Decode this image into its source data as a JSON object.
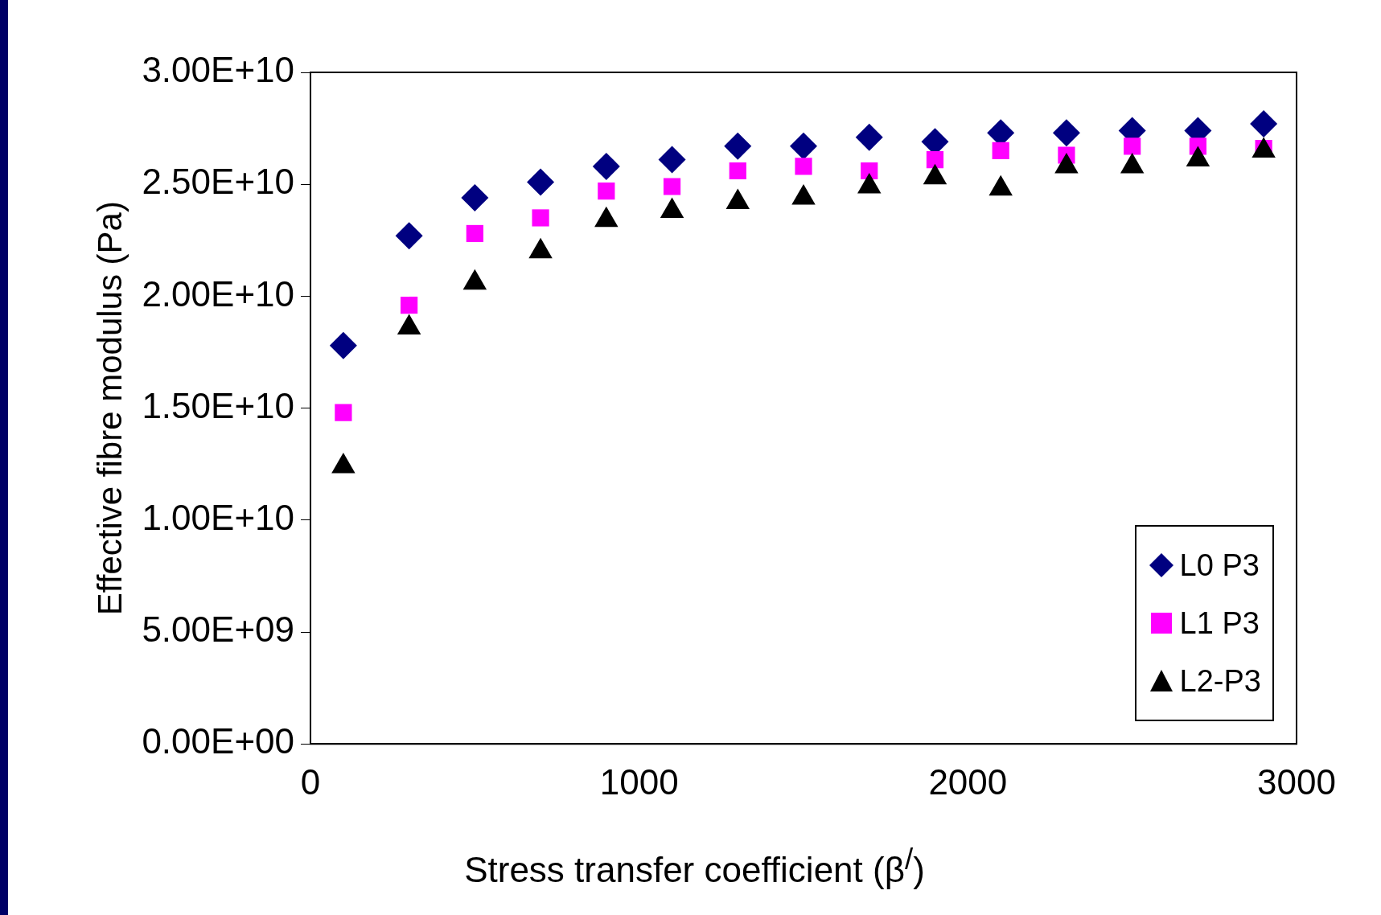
{
  "chart_data": {
    "type": "scatter",
    "xlabel": "Stress transfer coefficient (β$^{/}$)",
    "ylabel": "Effective fibre modulus (Pa)",
    "x": [
      100,
      300,
      500,
      700,
      900,
      1100,
      1300,
      1500,
      1700,
      1900,
      2100,
      2300,
      2500,
      2700,
      2900
    ],
    "xlim": [
      0,
      3000
    ],
    "xticks": [
      0,
      1000,
      2000,
      3000
    ],
    "ylim": [
      0,
      30000000000
    ],
    "yticks": [
      {
        "value": 0,
        "label": "0.00E+00"
      },
      {
        "value": 5000000000,
        "label": "5.00E+09"
      },
      {
        "value": 10000000000,
        "label": "1.00E+10"
      },
      {
        "value": 15000000000,
        "label": "1.50E+10"
      },
      {
        "value": 20000000000,
        "label": "2.00E+10"
      },
      {
        "value": 25000000000,
        "label": "2.50E+10"
      },
      {
        "value": 30000000000,
        "label": "3.00E+10"
      }
    ],
    "grid": false,
    "legend": "bottom right",
    "series": [
      {
        "name": "L0 P3",
        "color": "#000080",
        "marker": "diamond",
        "values": [
          17800000000,
          22700000000,
          24400000000,
          25100000000,
          25800000000,
          26100000000,
          26700000000,
          26700000000,
          27100000000,
          26900000000,
          27300000000,
          27300000000,
          27400000000,
          27400000000,
          27700000000
        ]
      },
      {
        "name": "L1 P3",
        "color": "#ff00ff",
        "marker": "square",
        "values": [
          14800000000,
          19600000000,
          22800000000,
          23500000000,
          24700000000,
          24900000000,
          25600000000,
          25800000000,
          25600000000,
          26100000000,
          26500000000,
          26300000000,
          26700000000,
          26700000000,
          26600000000
        ]
      },
      {
        "name": "L2-P3",
        "color": "#000000",
        "marker": "triangle",
        "values": [
          12400000000,
          18600000000,
          20600000000,
          22000000000,
          23400000000,
          23800000000,
          24200000000,
          24400000000,
          24900000000,
          25300000000,
          24800000000,
          25800000000,
          25800000000,
          26100000000,
          26500000000
        ]
      }
    ]
  }
}
